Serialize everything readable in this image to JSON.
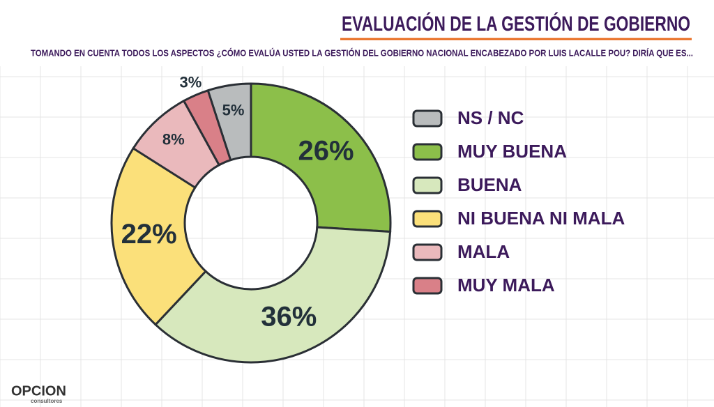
{
  "chart_data": {
    "type": "donut",
    "title": "EVALUACIÓN DE LA GESTIÓN DE GOBIERNO",
    "subtitle": "TOMANDO EN CUENTA TODOS LOS ASPECTOS ¿CÓMO EVALÚA USTED LA GESTIÓN DEL GOBIERNO NACIONAL ENCABEZADO POR LUIS LACALLE POU? DIRÍA QUE ES...",
    "categories": [
      "NS / NC",
      "MUY BUENA",
      "BUENA",
      "NI BUENA NI MALA",
      "MALA",
      "MUY MALA"
    ],
    "values": [
      5,
      26,
      36,
      22,
      8,
      3
    ],
    "value_labels": [
      "5%",
      "26%",
      "36%",
      "22%",
      "8%",
      "3%"
    ],
    "colors": [
      "#b9bcbd",
      "#8cbf4a",
      "#d7e8bd",
      "#fbe07a",
      "#eab9bc",
      "#d98088"
    ],
    "legend": "right"
  },
  "footer": {
    "logo": "OPCION",
    "logo_sub": "consultores"
  }
}
